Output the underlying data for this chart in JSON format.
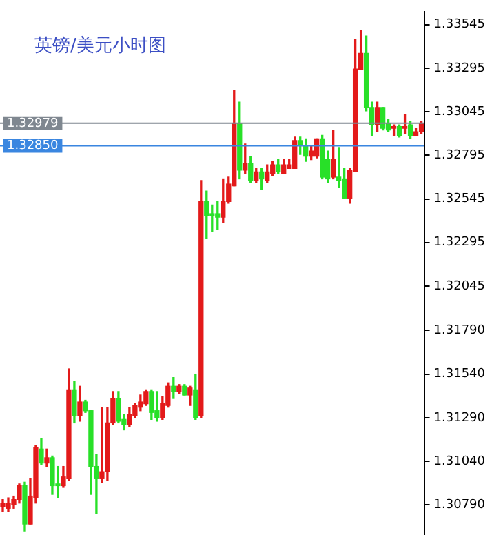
{
  "chart_data": {
    "type": "candlestick",
    "title": "英镑/美元小时图",
    "categories": [
      null,
      null,
      null,
      null,
      null,
      null,
      null,
      null,
      null,
      null,
      null,
      null,
      null,
      null,
      null,
      null,
      null,
      null,
      null,
      null,
      null,
      null,
      null,
      null,
      null,
      null,
      null,
      null,
      null,
      null,
      null,
      null,
      null,
      null,
      null,
      null,
      null,
      null,
      null,
      null,
      null,
      null,
      null,
      null,
      null,
      null,
      null,
      null,
      null,
      null,
      null,
      null,
      null,
      null,
      null,
      null,
      null,
      null,
      null,
      null,
      null,
      null,
      null,
      null,
      null,
      null,
      null,
      null,
      null,
      null,
      null,
      null,
      null,
      null,
      null,
      null,
      null
    ],
    "ohlc": [
      [
        1.3078,
        1.3082,
        1.3075,
        1.308
      ],
      [
        1.3077,
        1.3083,
        1.3075,
        1.308
      ],
      [
        1.3079,
        1.3084,
        1.3077,
        1.3082
      ],
      [
        1.3082,
        1.3091,
        1.308,
        1.309
      ],
      [
        1.309,
        1.3092,
        1.3064,
        1.3068
      ],
      [
        1.3068,
        1.3094,
        1.3068,
        1.3084
      ],
      [
        1.3083,
        1.3113,
        1.308,
        1.3112
      ],
      [
        1.3111,
        1.3117,
        1.3102,
        1.3103
      ],
      [
        1.3103,
        1.3111,
        1.3101,
        1.3106
      ],
      [
        1.3106,
        1.3107,
        1.3085,
        1.309
      ],
      [
        1.3091,
        1.3101,
        1.3083,
        1.309
      ],
      [
        1.309,
        1.3101,
        1.3089,
        1.3095
      ],
      [
        1.3094,
        1.3157,
        1.3093,
        1.3145
      ],
      [
        1.3145,
        1.315,
        1.3126,
        1.313
      ],
      [
        1.313,
        1.3147,
        1.3127,
        1.3138
      ],
      [
        1.3138,
        1.3139,
        1.3132,
        1.3133
      ],
      [
        1.3133,
        1.3133,
        1.3085,
        1.3101
      ],
      [
        1.3101,
        1.3108,
        1.3074,
        1.3094
      ],
      [
        1.3094,
        1.3135,
        1.3092,
        1.3098
      ],
      [
        1.3098,
        1.3135,
        1.3093,
        1.3126
      ],
      [
        1.3126,
        1.3144,
        1.3125,
        1.314
      ],
      [
        1.314,
        1.3144,
        1.3126,
        1.3127
      ],
      [
        1.3128,
        1.3131,
        1.3122,
        1.3125
      ],
      [
        1.3125,
        1.3135,
        1.3124,
        1.3131
      ],
      [
        1.313,
        1.3137,
        1.3129,
        1.3136
      ],
      [
        1.3135,
        1.3142,
        1.3133,
        1.3138
      ],
      [
        1.3137,
        1.3145,
        1.3136,
        1.3144
      ],
      [
        1.3144,
        1.3145,
        1.3128,
        1.3132
      ],
      [
        1.3133,
        1.3144,
        1.3127,
        1.3129
      ],
      [
        1.3129,
        1.3141,
        1.3128,
        1.3137
      ],
      [
        1.3136,
        1.3149,
        1.3135,
        1.3147
      ],
      [
        1.3147,
        1.3152,
        1.314,
        1.3144
      ],
      [
        1.3144,
        1.3148,
        1.3143,
        1.3147
      ],
      [
        1.3147,
        1.3148,
        1.3142,
        1.3142
      ],
      [
        1.3142,
        1.3147,
        1.3136,
        1.3146
      ],
      [
        1.3145,
        1.3154,
        1.3128,
        1.3129
      ],
      [
        1.313,
        1.3265,
        1.3129,
        1.3253
      ],
      [
        1.3253,
        1.3259,
        1.3232,
        1.3245
      ],
      [
        1.3246,
        1.3251,
        1.3236,
        1.3245
      ],
      [
        1.3246,
        1.3253,
        1.3237,
        1.3244
      ],
      [
        1.3244,
        1.3266,
        1.3241,
        1.3253
      ],
      [
        1.3253,
        1.3267,
        1.3252,
        1.3263
      ],
      [
        1.3262,
        1.3317,
        1.3262,
        1.3298
      ],
      [
        1.3298,
        1.331,
        1.3266,
        1.3271
      ],
      [
        1.3271,
        1.3286,
        1.3269,
        1.3275
      ],
      [
        1.3275,
        1.3279,
        1.3264,
        1.3265
      ],
      [
        1.3265,
        1.3272,
        1.3264,
        1.327
      ],
      [
        1.327,
        1.3272,
        1.326,
        1.3266
      ],
      [
        1.3265,
        1.3274,
        1.3264,
        1.327
      ],
      [
        1.3269,
        1.3276,
        1.3268,
        1.3274
      ],
      [
        1.3274,
        1.3277,
        1.3269,
        1.327
      ],
      [
        1.3269,
        1.3277,
        1.3269,
        1.3274
      ],
      [
        1.3272,
        1.3277,
        1.3272,
        1.3274
      ],
      [
        1.3272,
        1.329,
        1.3272,
        1.3288
      ],
      [
        1.3288,
        1.329,
        1.328,
        1.3285
      ],
      [
        1.3285,
        1.3289,
        1.3276,
        1.3279
      ],
      [
        1.3279,
        1.3285,
        1.3277,
        1.3282
      ],
      [
        1.3279,
        1.3289,
        1.3278,
        1.3289
      ],
      [
        1.3289,
        1.3291,
        1.3266,
        1.3267
      ],
      [
        1.3277,
        1.3282,
        1.3264,
        1.3266
      ],
      [
        1.3267,
        1.3294,
        1.3266,
        1.3277
      ],
      [
        1.3267,
        1.3284,
        1.3261,
        1.3265
      ],
      [
        1.3266,
        1.3272,
        1.3255,
        1.3255
      ],
      [
        1.3255,
        1.3272,
        1.3252,
        1.3271
      ],
      [
        1.327,
        1.3346,
        1.327,
        1.3329
      ],
      [
        1.3329,
        1.3351,
        1.3329,
        1.3338
      ],
      [
        1.3338,
        1.3348,
        1.3305,
        1.3307
      ],
      [
        1.3307,
        1.331,
        1.3291,
        1.3297
      ],
      [
        1.3297,
        1.331,
        1.3293,
        1.3307
      ],
      [
        1.3307,
        1.3307,
        1.3294,
        1.3295
      ],
      [
        1.3298,
        1.33,
        1.3293,
        1.3294
      ],
      [
        1.3295,
        1.3297,
        1.3291,
        1.3296
      ],
      [
        1.3296,
        1.3297,
        1.329,
        1.3291
      ],
      [
        1.3295,
        1.3303,
        1.3292,
        1.3296
      ],
      [
        1.3297,
        1.3299,
        1.3289,
        1.3291
      ],
      [
        1.3291,
        1.3295,
        1.3291,
        1.3293
      ],
      [
        1.3293,
        1.3299,
        1.3292,
        1.3298
      ]
    ],
    "colors": [
      "#e31a1a",
      "#e31a1a",
      "#e31a1a",
      "#e31a1a",
      "#28e028",
      "#e31a1a",
      "#e31a1a",
      "#28e028",
      "#e31a1a",
      "#28e028",
      "#28e028",
      "#e31a1a",
      "#e31a1a",
      "#28e028",
      "#e31a1a",
      "#28e028",
      "#28e028",
      "#28e028",
      "#e31a1a",
      "#e31a1a",
      "#e31a1a",
      "#28e028",
      "#28e028",
      "#e31a1a",
      "#e31a1a",
      "#e31a1a",
      "#e31a1a",
      "#28e028",
      "#28e028",
      "#e31a1a",
      "#e31a1a",
      "#28e028",
      "#e31a1a",
      "#28e028",
      "#e31a1a",
      "#28e028",
      "#e31a1a",
      "#28e028",
      "#28e028",
      "#28e028",
      "#e31a1a",
      "#e31a1a",
      "#e31a1a",
      "#28e028",
      "#e31a1a",
      "#28e028",
      "#e31a1a",
      "#28e028",
      "#e31a1a",
      "#e31a1a",
      "#28e028",
      "#e31a1a",
      "#e31a1a",
      "#e31a1a",
      "#28e028",
      "#28e028",
      "#e31a1a",
      "#e31a1a",
      "#28e028",
      "#28e028",
      "#e31a1a",
      "#28e028",
      "#28e028",
      "#e31a1a",
      "#e31a1a",
      "#e31a1a",
      "#28e028",
      "#28e028",
      "#e31a1a",
      "#28e028",
      "#28e028",
      "#e31a1a",
      "#28e028",
      "#e31a1a",
      "#28e028",
      "#e31a1a",
      "#e31a1a"
    ],
    "ylim": [
      1.3062,
      1.3362
    ],
    "yticks": [
      1.33545,
      1.33295,
      1.33045,
      1.32795,
      1.32545,
      1.32295,
      1.32045,
      {
        "value": 1.3179,
        "label": "1.31790"
      },
      {
        "value": 1.3154,
        "label": "1.31540"
      },
      {
        "value": 1.3129,
        "label": "1.31290"
      },
      {
        "value": 1.3104,
        "label": "1.31040"
      },
      {
        "value": 1.3079,
        "label": "1.30790"
      }
    ],
    "ref_lines": [
      {
        "axis": "y",
        "value": 1.32979,
        "label": "1.32979",
        "color": "#7f8790"
      },
      {
        "axis": "y",
        "value": 1.3285,
        "label": "1.32850",
        "color": "#3a86e0"
      }
    ],
    "tick_labels": "y",
    "grid": false,
    "legend": false
  }
}
